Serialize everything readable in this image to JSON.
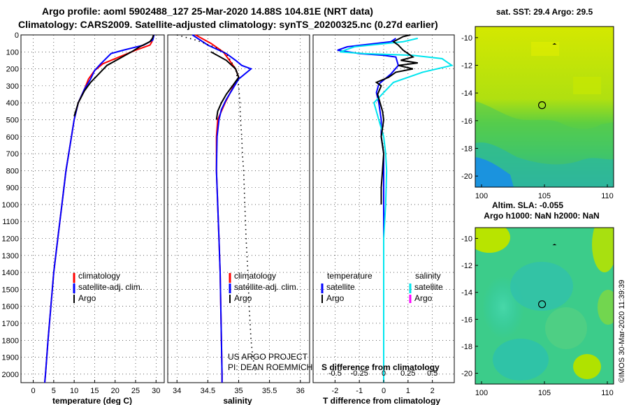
{
  "title_line1": "Argo profile: aoml 5902488_127 25-Mar-2020 14.88S 104.81E (NRT data)",
  "title_line2": "Climatology: CARS2009. Satellite-adjusted climatology: synTS_20200325.nc (0.27d earlier)",
  "pressure_ticks": [
    "0",
    "100",
    "200",
    "300",
    "400",
    "500",
    "600",
    "700",
    "800",
    "900",
    "1000",
    "1100",
    "1200",
    "1300",
    "1400",
    "1500",
    "1600",
    "1700",
    "1800",
    "1900",
    "2000"
  ],
  "colors": {
    "climatology": "#ff0000",
    "satellite_adj": "#0000ff",
    "argo": "#000000",
    "sat_salinity": "#00e5ee",
    "argo_salinity": "#ff00ff"
  },
  "chart_data": [
    {
      "type": "line",
      "panel": "temperature",
      "xlabel": "temperature (deg C)",
      "xticks": [
        "0",
        "5",
        "10",
        "15",
        "20",
        "25",
        "30"
      ],
      "xlim": [
        -3,
        32
      ],
      "ylim": [
        2050,
        0
      ],
      "legend": {
        "climatology": "climatology",
        "satellite": "satellite-adj. clim.",
        "argo": "Argo"
      },
      "series": [
        {
          "name": "climatology",
          "color": "#ff0000",
          "points": [
            [
              29.4,
              0
            ],
            [
              29.0,
              40
            ],
            [
              28.5,
              60
            ],
            [
              25,
              90
            ],
            [
              21,
              130
            ],
            [
              17,
              170
            ],
            [
              15,
              210
            ],
            [
              13.5,
              260
            ],
            [
              12.5,
              320
            ],
            [
              11,
              400
            ],
            [
              10,
              500
            ],
            [
              9,
              650
            ],
            [
              8,
              800
            ],
            [
              7,
              1000
            ],
            [
              6,
              1200
            ],
            [
              5,
              1400
            ],
            [
              4.3,
              1600
            ],
            [
              3.6,
              1800
            ],
            [
              3,
              2000
            ],
            [
              2.8,
              2050
            ]
          ]
        },
        {
          "name": "satellite-adj. clim.",
          "color": "#0000ff",
          "points": [
            [
              29.5,
              0
            ],
            [
              29.2,
              30
            ],
            [
              27,
              60
            ],
            [
              22,
              90
            ],
            [
              19,
              110
            ],
            [
              16.5,
              170
            ],
            [
              15,
              210
            ],
            [
              14,
              260
            ],
            [
              12.5,
              320
            ],
            [
              11,
              400
            ],
            [
              10,
              500
            ],
            [
              9,
              650
            ],
            [
              8,
              800
            ],
            [
              7,
              1000
            ],
            [
              6,
              1200
            ],
            [
              5,
              1400
            ],
            [
              4.3,
              1600
            ],
            [
              3.6,
              1800
            ],
            [
              3,
              2000
            ],
            [
              2.8,
              2050
            ]
          ]
        },
        {
          "name": "Argo",
          "color": "#000000",
          "points": [
            [
              29.4,
              0
            ],
            [
              29.1,
              20
            ],
            [
              28.5,
              40
            ],
            [
              26,
              70
            ],
            [
              24,
              100
            ],
            [
              21,
              140
            ],
            [
              18,
              180
            ],
            [
              16,
              230
            ],
            [
              14,
              280
            ],
            [
              12.5,
              330
            ],
            [
              11,
              400
            ],
            [
              10,
              480
            ]
          ]
        }
      ]
    },
    {
      "type": "line",
      "panel": "salinity",
      "xlabel": "salinity",
      "xticks": [
        "34",
        "34.5",
        "35",
        "35.5",
        "36"
      ],
      "xlim": [
        33.85,
        36.15
      ],
      "ylim": [
        2050,
        0
      ],
      "legend": {
        "climatology": "climatology",
        "satellite": "satellite-adj. clim.",
        "argo": "Argo"
      },
      "series": [
        {
          "name": "climatology",
          "color": "#ff0000",
          "points": [
            [
              34.3,
              0
            ],
            [
              34.55,
              50
            ],
            [
              34.75,
              100
            ],
            [
              34.85,
              150
            ],
            [
              34.95,
              200
            ],
            [
              35.0,
              250
            ],
            [
              34.92,
              300
            ],
            [
              34.85,
              350
            ],
            [
              34.78,
              400
            ],
            [
              34.72,
              450
            ],
            [
              34.66,
              500
            ],
            [
              34.64,
              600
            ],
            [
              34.64,
              800
            ],
            [
              34.66,
              1000
            ],
            [
              34.68,
              1200
            ],
            [
              34.7,
              1400
            ],
            [
              34.71,
              1600
            ],
            [
              34.72,
              1800
            ],
            [
              34.73,
              2000
            ],
            [
              34.73,
              2050
            ]
          ]
        },
        {
          "name": "satellite-adj. clim.",
          "color": "#0000ff",
          "points": [
            [
              34.25,
              0
            ],
            [
              34.5,
              60
            ],
            [
              34.8,
              110
            ],
            [
              34.95,
              150
            ],
            [
              35.05,
              180
            ],
            [
              35.2,
              200
            ],
            [
              35.0,
              260
            ],
            [
              34.9,
              320
            ],
            [
              34.8,
              380
            ],
            [
              34.72,
              440
            ],
            [
              34.68,
              500
            ],
            [
              34.65,
              600
            ],
            [
              34.64,
              800
            ],
            [
              34.66,
              1000
            ],
            [
              34.68,
              1200
            ],
            [
              34.7,
              1400
            ],
            [
              34.71,
              1600
            ],
            [
              34.72,
              1800
            ],
            [
              34.73,
              2000
            ],
            [
              34.73,
              2050
            ]
          ]
        },
        {
          "name": "Argo",
          "color": "#000000",
          "points": [
            [
              34.55,
              100
            ],
            [
              34.8,
              150
            ],
            [
              34.95,
              200
            ],
            [
              35.0,
              250
            ],
            [
              34.9,
              300
            ],
            [
              34.8,
              350
            ],
            [
              34.72,
              400
            ],
            [
              34.66,
              450
            ],
            [
              34.64,
              500
            ]
          ]
        },
        {
          "name": "dotted reference",
          "color": "#000000",
          "dotted": true,
          "points": [
            [
              34.0,
              0
            ],
            [
              34.3,
              30
            ],
            [
              34.6,
              70
            ],
            [
              34.8,
              110
            ],
            [
              34.95,
              200
            ],
            [
              35.0,
              300
            ],
            [
              35.02,
              400
            ],
            [
              35.03,
              500
            ],
            [
              35.05,
              600
            ],
            [
              35.06,
              700
            ],
            [
              35.08,
              800
            ],
            [
              35.1,
              1000
            ],
            [
              35.12,
              1200
            ],
            [
              35.15,
              1400
            ],
            [
              35.17,
              1600
            ],
            [
              35.2,
              1800
            ],
            [
              35.23,
              1900
            ],
            [
              35.28,
              2000
            ]
          ]
        }
      ],
      "annotations": [
        "US ARGO PROJECT",
        "PI: DEAN ROEMMICH"
      ]
    },
    {
      "type": "line",
      "panel": "difference",
      "xlabel": "T difference from climatology",
      "x2label": "S difference from climatology",
      "xticks": [
        "-2",
        "-1",
        "0",
        "1",
        "2"
      ],
      "x2ticks": [
        "-0.5",
        "-0.25",
        "0",
        "0.25",
        "0.5"
      ],
      "xlim": [
        -2.9,
        2.9
      ],
      "ylim": [
        2050,
        0
      ],
      "legend": {
        "temperature": "temperature",
        "salinity": "salinity",
        "satellite": "satellite",
        "argo": "Argo",
        "satellite_s": "satellite",
        "argo_s": "Argo"
      },
      "series": [
        {
          "name": "T satellite",
          "color": "#0000ff",
          "points": [
            [
              0.5,
              20
            ],
            [
              0.3,
              40
            ],
            [
              -1.5,
              70
            ],
            [
              -1.9,
              90
            ],
            [
              -1.0,
              110
            ],
            [
              0,
              120
            ],
            [
              0.5,
              130
            ],
            [
              0.6,
              180
            ],
            [
              0.3,
              230
            ],
            [
              -0.2,
              290
            ],
            [
              -0.3,
              340
            ],
            [
              -0.2,
              400
            ],
            [
              -0.1,
              500
            ],
            [
              -0.1,
              600
            ],
            [
              0,
              700
            ],
            [
              0,
              800
            ],
            [
              0,
              1000
            ],
            [
              0,
              2050
            ]
          ]
        },
        {
          "name": "S satellite",
          "color": "#00e5ee",
          "points": [
            [
              0.35,
              20
            ],
            [
              0.2,
              40
            ],
            [
              -0.3,
              70
            ],
            [
              -0.45,
              100
            ],
            [
              -0.2,
              110
            ],
            [
              0.3,
              120
            ],
            [
              0.6,
              140
            ],
            [
              0.7,
              180
            ],
            [
              0.4,
              220
            ],
            [
              0.1,
              280
            ],
            [
              0,
              340
            ],
            [
              -0.1,
              400
            ],
            [
              -0.05,
              500
            ],
            [
              0,
              600
            ],
            [
              0.02,
              700
            ],
            [
              0.03,
              800
            ],
            [
              0.02,
              1000
            ],
            [
              0,
              1200
            ],
            [
              0,
              2050
            ]
          ]
        },
        {
          "name": "T Argo",
          "color": "#000000",
          "points": [
            [
              1.1,
              0
            ],
            [
              0.8,
              10
            ],
            [
              0.4,
              40
            ],
            [
              0.6,
              60
            ],
            [
              0.8,
              90
            ],
            [
              1.0,
              110
            ],
            [
              1.2,
              130
            ],
            [
              0.7,
              150
            ],
            [
              1.4,
              165
            ],
            [
              0.6,
              180
            ],
            [
              1.2,
              200
            ],
            [
              0.5,
              220
            ],
            [
              0.2,
              250
            ],
            [
              -0.3,
              280
            ],
            [
              -0.1,
              300
            ],
            [
              -0.25,
              350
            ],
            [
              -0.15,
              400
            ],
            [
              -0.05,
              450
            ],
            [
              0,
              500
            ],
            [
              -0.1,
              600
            ],
            [
              0,
              700
            ],
            [
              -0.05,
              800
            ],
            [
              -0.1,
              900
            ],
            [
              -0.1,
              1000
            ]
          ]
        }
      ]
    },
    {
      "type": "heatmap",
      "panel": "sst_map",
      "title": "sat. SST: 29.4 Argo: 29.5",
      "xticks": [
        "100",
        "105",
        "110"
      ],
      "yticks": [
        "-10",
        "-12",
        "-14",
        "-16",
        "-18",
        "-20"
      ],
      "xlim": [
        99.5,
        110.5
      ],
      "ylim": [
        -20.8,
        -9.2
      ],
      "float_position": [
        104.81,
        -14.88
      ],
      "marker": [
        105.8,
        -10.5
      ]
    },
    {
      "type": "heatmap",
      "panel": "sla_map",
      "title_line1": "Altim. SLA: -0.055",
      "title_line2": "Argo h1000: NaN h2000: NaN",
      "xticks": [
        "100",
        "105",
        "110"
      ],
      "yticks": [
        "-10",
        "-12",
        "-14",
        "-16",
        "-18",
        "-20"
      ],
      "xlim": [
        99.5,
        110.5
      ],
      "ylim": [
        -20.8,
        -9.2
      ],
      "float_position": [
        104.81,
        -14.88
      ],
      "marker": [
        105.8,
        -10.5
      ]
    }
  ],
  "side_label": "©IMOS 30-Mar-2020 11:39:39"
}
